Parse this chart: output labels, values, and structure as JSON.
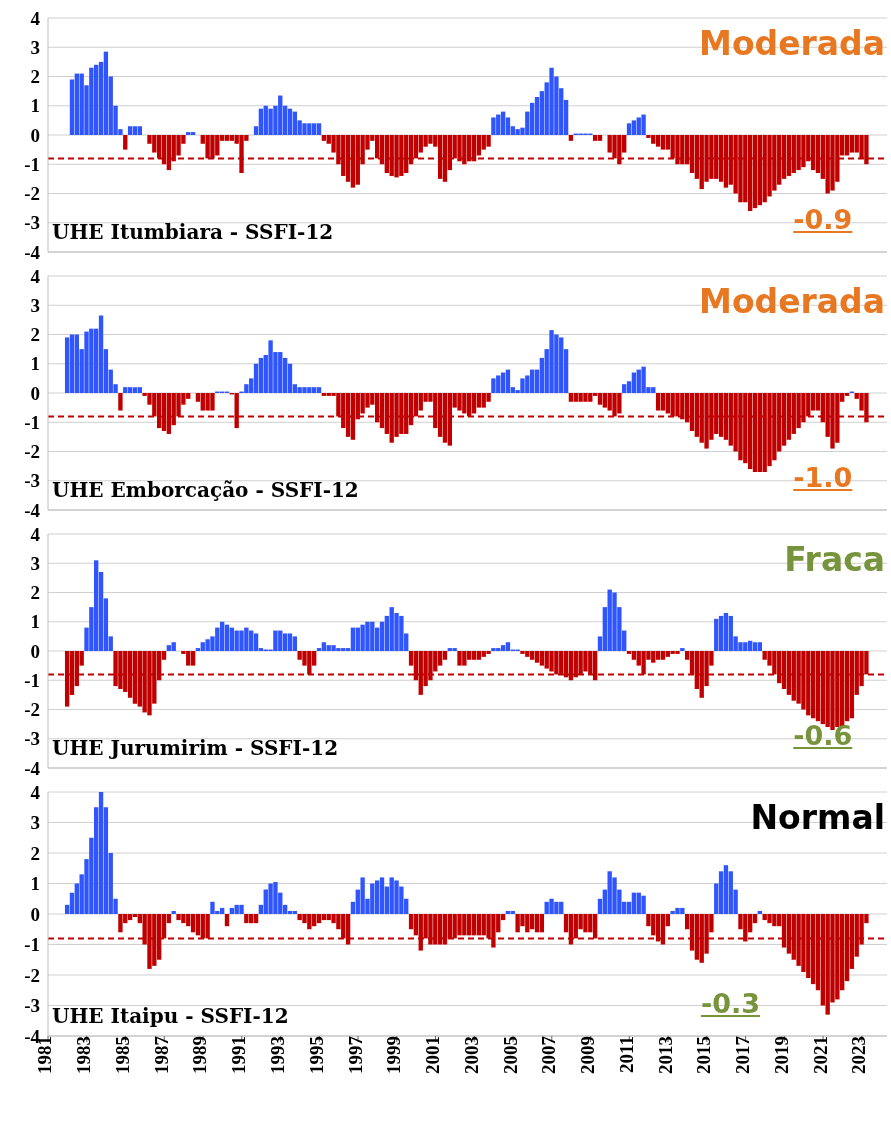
{
  "chart_data": [
    {
      "type": "bar",
      "title": "UHE Itumbiara - SSFI-12",
      "annotations": [
        "Moderada",
        "-0.9"
      ],
      "x": [
        1982,
        1982.25,
        1982.5,
        1982.75,
        1983,
        1983.25,
        1983.5,
        1983.75,
        1984,
        1984.25,
        1984.5,
        1984.75,
        1985,
        1985.25,
        1985.5,
        1985.75,
        1986,
        1986.25,
        1986.5,
        1986.75,
        1987,
        1987.25,
        1987.5,
        1987.75,
        1988,
        1988.25,
        1988.5,
        1988.75,
        1989,
        1989.25,
        1989.5,
        1989.75,
        1990,
        1990.25,
        1990.5,
        1990.75,
        1991,
        1991.25,
        1991.5,
        1991.75,
        1992,
        1992.25,
        1992.5,
        1992.75,
        1993,
        1993.25,
        1993.5,
        1993.75,
        1994,
        1994.25,
        1994.5,
        1994.75,
        1995,
        1995.25,
        1995.5,
        1995.75,
        1996,
        1996.25,
        1996.5,
        1996.75,
        1997,
        1997.25,
        1997.5,
        1997.75,
        1998,
        1998.25,
        1998.5,
        1998.75,
        1999,
        1999.25,
        1999.5,
        1999.75,
        2000,
        2000.25,
        2000.5,
        2000.75,
        2001,
        2001.25,
        2001.5,
        2001.75,
        2002,
        2002.25,
        2002.5,
        2002.75,
        2003,
        2003.25,
        2003.5,
        2003.75,
        2004,
        2004.25,
        2004.5,
        2004.75,
        2005,
        2005.25,
        2005.5,
        2005.75,
        2006,
        2006.25,
        2006.5,
        2006.75,
        2007,
        2007.25,
        2007.5,
        2007.75,
        2008,
        2008.25,
        2008.5,
        2008.75,
        2009,
        2009.25,
        2009.5,
        2009.75,
        2010,
        2010.25,
        2010.5,
        2010.75,
        2011,
        2011.25,
        2011.5,
        2011.75,
        2012,
        2012.25,
        2012.5,
        2012.75,
        2013,
        2013.25,
        2013.5,
        2013.75,
        2014,
        2014.25,
        2014.5,
        2014.75,
        2015,
        2015.25,
        2015.5,
        2015.75,
        2016,
        2016.25,
        2016.5,
        2016.75,
        2017,
        2017.25,
        2017.5,
        2017.75,
        2018,
        2018.25,
        2018.5,
        2018.75,
        2019,
        2019.25,
        2019.5,
        2019.75,
        2020,
        2020.25,
        2020.5,
        2020.75,
        2021,
        2021.25,
        2021.5,
        2021.75,
        2022,
        2022.25,
        2022.5,
        2022.75,
        2023,
        2023.25
      ],
      "values": [
        0,
        1.9,
        2.1,
        2.1,
        1.7,
        2.3,
        2.4,
        2.5,
        2.85,
        2.0,
        1.0,
        0.2,
        -0.5,
        0.3,
        0.3,
        0.3,
        0,
        -0.3,
        -0.6,
        -0.8,
        -1.0,
        -1.2,
        -0.9,
        -0.7,
        -0.3,
        0.1,
        0.1,
        0,
        -0.3,
        -0.8,
        -0.8,
        -0.7,
        -0.2,
        -0.2,
        -0.2,
        -0.3,
        -1.3,
        -0.2,
        0,
        0.3,
        0.9,
        1.0,
        0.9,
        1.0,
        1.35,
        1.0,
        0.9,
        0.8,
        0.5,
        0.4,
        0.4,
        0.4,
        0.4,
        -0.2,
        -0.3,
        -0.6,
        -1.0,
        -1.4,
        -1.6,
        -1.8,
        -1.7,
        -1.0,
        -0.5,
        -0.2,
        -0.8,
        -1.0,
        -1.3,
        -1.4,
        -1.45,
        -1.4,
        -1.3,
        -1.0,
        -0.8,
        -0.6,
        -0.4,
        -0.3,
        -0.4,
        -1.5,
        -1.6,
        -1.2,
        -0.8,
        -0.9,
        -1.0,
        -0.9,
        -0.9,
        -0.7,
        -0.5,
        -0.4,
        0.6,
        0.7,
        0.8,
        0.6,
        0.3,
        0.2,
        0.25,
        0.8,
        1.1,
        1.3,
        1.5,
        1.8,
        2.3,
        2.0,
        1.6,
        1.2,
        -0.2,
        0.05,
        0.05,
        0.05,
        0.05,
        -0.2,
        -0.2,
        0,
        -0.6,
        -0.8,
        -1.0,
        -0.6,
        0.4,
        0.5,
        0.6,
        0.7,
        -0.1,
        -0.3,
        -0.4,
        -0.5,
        -0.5,
        -0.8,
        -1.0,
        -1.0,
        -1.0,
        -1.3,
        -1.5,
        -1.85,
        -1.6,
        -1.5,
        -1.5,
        -1.6,
        -1.8,
        -1.7,
        -2.0,
        -2.3,
        -2.3,
        -2.6,
        -2.5,
        -2.4,
        -2.3,
        -2.1,
        -1.9,
        -1.7,
        -1.5,
        -1.4,
        -1.3,
        -1.2,
        -1.1,
        -0.9,
        -1.2,
        -1.3,
        -1.5,
        -2.0,
        -1.9,
        -1.6,
        -0.7,
        -0.7,
        -0.6,
        -0.6,
        -0.8,
        -1.0
      ],
      "colors": [
        "#2f55ff",
        "#2f55ff",
        "#2f55ff",
        "#2f55ff",
        "#2f55ff",
        "#2f55ff",
        "#2f55ff",
        "#2f55ff",
        "#2f55ff",
        "#2f55ff",
        "#2f55ff",
        "#2f55ff",
        "#c00000",
        "#2f55ff",
        "#2f55ff",
        "#2f55ff",
        "#2f55ff",
        "#c00000",
        "#c00000",
        "#c00000",
        "#c00000",
        "#c00000",
        "#c00000",
        "#c00000",
        "#c00000",
        "#2f55ff",
        "#2f55ff",
        "#2f55ff",
        "#c00000",
        "#c00000",
        "#c00000",
        "#c00000",
        "#c00000",
        "#c00000",
        "#c00000",
        "#c00000",
        "#c00000",
        "#c00000",
        "#2f55ff",
        "#2f55ff",
        "#2f55ff",
        "#2f55ff",
        "#2f55ff",
        "#2f55ff",
        "#2f55ff",
        "#2f55ff",
        "#2f55ff",
        "#2f55ff",
        "#2f55ff",
        "#2f55ff",
        "#2f55ff",
        "#2f55ff",
        "#2f55ff",
        "#c00000",
        "#c00000",
        "#c00000",
        "#c00000",
        "#c00000",
        "#c00000",
        "#c00000",
        "#c00000",
        "#c00000",
        "#c00000",
        "#c00000",
        "#c00000",
        "#c00000",
        "#c00000",
        "#c00000",
        "#c00000",
        "#c00000",
        "#c00000",
        "#c00000",
        "#c00000",
        "#c00000",
        "#c00000",
        "#c00000",
        "#c00000",
        "#c00000",
        "#c00000",
        "#c00000",
        "#c00000",
        "#c00000",
        "#c00000",
        "#c00000",
        "#c00000",
        "#c00000",
        "#c00000",
        "#c00000",
        "#2f55ff",
        "#2f55ff",
        "#2f55ff",
        "#2f55ff",
        "#2f55ff",
        "#2f55ff",
        "#2f55ff",
        "#2f55ff",
        "#2f55ff",
        "#2f55ff",
        "#2f55ff",
        "#2f55ff",
        "#2f55ff",
        "#2f55ff",
        "#2f55ff",
        "#2f55ff",
        "#c00000",
        "#2f55ff",
        "#2f55ff",
        "#2f55ff",
        "#2f55ff",
        "#c00000",
        "#c00000",
        "#2f55ff",
        "#c00000",
        "#c00000",
        "#c00000",
        "#c00000",
        "#2f55ff",
        "#2f55ff",
        "#2f55ff",
        "#2f55ff",
        "#c00000",
        "#c00000",
        "#c00000",
        "#c00000",
        "#c00000",
        "#c00000",
        "#c00000",
        "#c00000",
        "#c00000",
        "#c00000",
        "#c00000",
        "#c00000",
        "#c00000",
        "#c00000",
        "#c00000",
        "#c00000",
        "#c00000",
        "#c00000",
        "#c00000",
        "#c00000",
        "#c00000",
        "#c00000",
        "#c00000",
        "#c00000",
        "#c00000",
        "#c00000",
        "#c00000",
        "#c00000",
        "#c00000",
        "#c00000",
        "#c00000",
        "#c00000",
        "#c00000",
        "#c00000",
        "#c00000",
        "#c00000",
        "#c00000",
        "#c00000",
        "#c00000",
        "#c00000",
        "#c00000",
        "#c00000",
        "#c00000",
        "#c00000",
        "#c00000",
        "#c00000"
      ],
      "xlim": [
        1981,
        2024.3
      ],
      "xticks": [
        1981,
        1983,
        1985,
        1987,
        1989,
        1991,
        1993,
        1995,
        1997,
        1999,
        2001,
        2003,
        2005,
        2007,
        2009,
        2011,
        2013,
        2015,
        2017,
        2019,
        2021,
        2023
      ],
      "ylim": [
        -4,
        4
      ],
      "yticks": [
        -4,
        -3,
        -2,
        -1,
        0,
        1,
        2,
        3,
        4
      ],
      "grid": "y",
      "tick_labels": "y",
      "ref_lines": [
        {
          "axis": "y",
          "value": -0.8,
          "color": "#c00000",
          "line_style": "dashed"
        }
      ]
    },
    {
      "type": "bar",
      "title": "UHE Emborcação - SSFI-12",
      "annotations": [
        "Moderada",
        "-1.0"
      ],
      "x": [
        1982,
        1982.25,
        1982.5,
        1982.75,
        1983,
        1983.25,
        1983.5,
        1983.75,
        1984,
        1984.25,
        1984.5,
        1984.75,
        1985,
        1985.25,
        1985.5,
        1985.75,
        1986,
        1986.25,
        1986.5,
        1986.75,
        1987,
        1987.25,
        1987.5,
        1987.75,
        1988,
        1988.25,
        1988.5,
        1988.75,
        1989,
        1989.25,
        1989.5,
        1989.75,
        1990,
        1990.25,
        1990.5,
        1990.75,
        1991,
        1991.25,
        1991.5,
        1991.75,
        1992,
        1992.25,
        1992.5,
        1992.75,
        1993,
        1993.25,
        1993.5,
        1993.75,
        1994,
        1994.25,
        1994.5,
        1994.75,
        1995,
        1995.25,
        1995.5,
        1995.75,
        1996,
        1996.25,
        1996.5,
        1996.75,
        1997,
        1997.25,
        1997.5,
        1997.75,
        1998,
        1998.25,
        1998.5,
        1998.75,
        1999,
        1999.25,
        1999.5,
        1999.75,
        2000,
        2000.25,
        2000.5,
        2000.75,
        2001,
        2001.25,
        2001.5,
        2001.75,
        2002,
        2002.25,
        2002.5,
        2002.75,
        2003,
        2003.25,
        2003.5,
        2003.75,
        2004,
        2004.25,
        2004.5,
        2004.75,
        2005,
        2005.25,
        2005.5,
        2005.75,
        2006,
        2006.25,
        2006.5,
        2006.75,
        2007,
        2007.25,
        2007.5,
        2007.75,
        2008,
        2008.25,
        2008.5,
        2008.75,
        2009,
        2009.25,
        2009.5,
        2009.75,
        2010,
        2010.25,
        2010.5,
        2010.75,
        2011,
        2011.25,
        2011.5,
        2011.75,
        2012,
        2012.25,
        2012.5,
        2012.75,
        2013,
        2013.25,
        2013.5,
        2013.75,
        2014,
        2014.25,
        2014.5,
        2014.75,
        2015,
        2015.25,
        2015.5,
        2015.75,
        2016,
        2016.25,
        2016.5,
        2016.75,
        2017,
        2017.25,
        2017.5,
        2017.75,
        2018,
        2018.25,
        2018.5,
        2018.75,
        2019,
        2019.25,
        2019.5,
        2019.75,
        2020,
        2020.25,
        2020.5,
        2020.75,
        2021,
        2021.25,
        2021.5,
        2021.75,
        2022,
        2022.25,
        2022.5,
        2022.75,
        2023,
        2023.25
      ],
      "values": [
        1.9,
        2.0,
        2.0,
        1.5,
        2.1,
        2.2,
        2.2,
        2.65,
        1.5,
        0.8,
        0.3,
        -0.6,
        0.2,
        0.2,
        0.2,
        0.2,
        -0.1,
        -0.4,
        -0.8,
        -1.2,
        -1.3,
        -1.4,
        -1.1,
        -0.8,
        -0.4,
        -0.2,
        0,
        -0.3,
        -0.6,
        -0.6,
        -0.6,
        0.05,
        0.05,
        0.05,
        -0.05,
        -1.2,
        0.05,
        0.3,
        0.5,
        1.0,
        1.2,
        1.3,
        1.8,
        1.4,
        1.4,
        1.2,
        1.0,
        0.3,
        0.2,
        0.2,
        0.2,
        0.2,
        0.2,
        -0.1,
        -0.1,
        -0.1,
        -0.8,
        -1.2,
        -1.5,
        -1.6,
        -0.9,
        -0.7,
        -0.5,
        -0.4,
        -1.0,
        -1.2,
        -1.4,
        -1.7,
        -1.5,
        -1.4,
        -1.4,
        -1.1,
        -0.8,
        -0.6,
        -0.3,
        -0.3,
        -1.2,
        -1.5,
        -1.7,
        -1.8,
        -0.5,
        -0.6,
        -0.7,
        -0.8,
        -0.7,
        -0.5,
        -0.5,
        -0.3,
        0.5,
        0.6,
        0.7,
        0.8,
        0.2,
        0.1,
        0.5,
        0.6,
        0.8,
        0.8,
        1.2,
        1.5,
        2.15,
        2.0,
        1.9,
        1.5,
        -0.3,
        -0.3,
        -0.3,
        -0.3,
        -0.3,
        -0.1,
        -0.4,
        -0.5,
        -0.6,
        -0.8,
        -0.7,
        0.3,
        0.4,
        0.7,
        0.8,
        0.9,
        0.2,
        0.2,
        -0.6,
        -0.6,
        -0.7,
        -0.8,
        -0.8,
        -0.9,
        -1.0,
        -1.3,
        -1.5,
        -1.7,
        -1.9,
        -1.6,
        -1.4,
        -1.5,
        -1.6,
        -1.8,
        -2.0,
        -2.3,
        -2.4,
        -2.6,
        -2.7,
        -2.7,
        -2.7,
        -2.5,
        -2.3,
        -2.0,
        -1.8,
        -1.6,
        -1.4,
        -1.2,
        -1.0,
        -0.8,
        -0.6,
        -0.6,
        -1.0,
        -1.5,
        -1.9,
        -1.7,
        -0.3,
        -0.1,
        0.05,
        -0.2,
        -0.6,
        -1.0
      ],
      "colors": [
        "#2f55ff",
        "#2f55ff",
        "#2f55ff",
        "#2f55ff",
        "#2f55ff",
        "#2f55ff",
        "#2f55ff",
        "#2f55ff",
        "#2f55ff",
        "#2f55ff",
        "#2f55ff",
        "#c00000",
        "#2f55ff",
        "#2f55ff",
        "#2f55ff",
        "#2f55ff",
        "#c00000",
        "#c00000",
        "#c00000",
        "#c00000",
        "#c00000",
        "#c00000",
        "#c00000",
        "#c00000",
        "#c00000",
        "#c00000",
        "#2f55ff",
        "#c00000",
        "#c00000",
        "#c00000",
        "#c00000",
        "#2f55ff",
        "#2f55ff",
        "#2f55ff",
        "#c00000",
        "#c00000",
        "#2f55ff",
        "#2f55ff",
        "#2f55ff",
        "#2f55ff",
        "#2f55ff",
        "#2f55ff",
        "#2f55ff",
        "#2f55ff",
        "#2f55ff",
        "#2f55ff",
        "#2f55ff",
        "#2f55ff",
        "#2f55ff",
        "#2f55ff",
        "#2f55ff",
        "#2f55ff",
        "#2f55ff",
        "#c00000",
        "#c00000",
        "#c00000",
        "#c00000",
        "#c00000",
        "#c00000",
        "#c00000",
        "#c00000",
        "#c00000",
        "#c00000",
        "#c00000",
        "#c00000",
        "#c00000",
        "#c00000",
        "#c00000",
        "#c00000",
        "#c00000",
        "#c00000",
        "#c00000",
        "#c00000",
        "#c00000",
        "#c00000",
        "#c00000",
        "#c00000",
        "#c00000",
        "#c00000",
        "#c00000",
        "#c00000",
        "#c00000",
        "#c00000",
        "#c00000",
        "#c00000",
        "#c00000",
        "#c00000",
        "#c00000",
        "#2f55ff",
        "#2f55ff",
        "#2f55ff",
        "#2f55ff",
        "#2f55ff",
        "#2f55ff",
        "#2f55ff",
        "#2f55ff",
        "#2f55ff",
        "#2f55ff",
        "#2f55ff",
        "#2f55ff",
        "#2f55ff",
        "#2f55ff",
        "#2f55ff",
        "#2f55ff",
        "#c00000",
        "#c00000",
        "#c00000",
        "#c00000",
        "#c00000",
        "#c00000",
        "#c00000",
        "#c00000",
        "#c00000",
        "#c00000",
        "#c00000",
        "#2f55ff",
        "#2f55ff",
        "#2f55ff",
        "#2f55ff",
        "#2f55ff",
        "#2f55ff",
        "#2f55ff",
        "#c00000",
        "#c00000",
        "#c00000",
        "#c00000",
        "#c00000",
        "#c00000",
        "#c00000",
        "#c00000",
        "#c00000",
        "#c00000",
        "#c00000",
        "#c00000",
        "#c00000",
        "#c00000",
        "#c00000",
        "#c00000",
        "#c00000",
        "#c00000",
        "#c00000",
        "#c00000",
        "#c00000",
        "#c00000",
        "#c00000",
        "#c00000",
        "#c00000",
        "#c00000",
        "#c00000",
        "#c00000",
        "#c00000",
        "#c00000",
        "#c00000",
        "#c00000",
        "#c00000",
        "#c00000",
        "#c00000",
        "#c00000",
        "#c00000",
        "#c00000",
        "#c00000",
        "#c00000",
        "#2f55ff",
        "#c00000",
        "#c00000",
        "#c00000"
      ],
      "xlim": [
        1981,
        2024.3
      ],
      "xticks": [
        1981,
        1983,
        1985,
        1987,
        1989,
        1991,
        1993,
        1995,
        1997,
        1999,
        2001,
        2003,
        2005,
        2007,
        2009,
        2011,
        2013,
        2015,
        2017,
        2019,
        2021,
        2023
      ],
      "ylim": [
        -4,
        4
      ],
      "yticks": [
        -4,
        -3,
        -2,
        -1,
        0,
        1,
        2,
        3,
        4
      ],
      "grid": "y",
      "tick_labels": "y",
      "ref_lines": [
        {
          "axis": "y",
          "value": -0.8,
          "color": "#c00000",
          "line_style": "dashed"
        }
      ]
    },
    {
      "type": "bar",
      "title": "UHE Jurumirim - SSFI-12",
      "annotations": [
        "Fraca",
        "-0.6"
      ],
      "x": [
        1982,
        1982.25,
        1982.5,
        1982.75,
        1983,
        1983.25,
        1983.5,
        1983.75,
        1984,
        1984.25,
        1984.5,
        1984.75,
        1985,
        1985.25,
        1985.5,
        1985.75,
        1986,
        1986.25,
        1986.5,
        1986.75,
        1987,
        1987.25,
        1987.5,
        1987.75,
        1988,
        1988.25,
        1988.5,
        1988.75,
        1989,
        1989.25,
        1989.5,
        1989.75,
        1990,
        1990.25,
        1990.5,
        1990.75,
        1991,
        1991.25,
        1991.5,
        1991.75,
        1992,
        1992.25,
        1992.5,
        1992.75,
        1993,
        1993.25,
        1993.5,
        1993.75,
        1994,
        1994.25,
        1994.5,
        1994.75,
        1995,
        1995.25,
        1995.5,
        1995.75,
        1996,
        1996.25,
        1996.5,
        1996.75,
        1997,
        1997.25,
        1997.5,
        1997.75,
        1998,
        1998.25,
        1998.5,
        1998.75,
        1999,
        1999.25,
        1999.5,
        1999.75,
        2000,
        2000.25,
        2000.5,
        2000.75,
        2001,
        2001.25,
        2001.5,
        2001.75,
        2002,
        2002.25,
        2002.5,
        2002.75,
        2003,
        2003.25,
        2003.5,
        2003.75,
        2004,
        2004.25,
        2004.5,
        2004.75,
        2005,
        2005.25,
        2005.5,
        2005.75,
        2006,
        2006.25,
        2006.5,
        2006.75,
        2007,
        2007.25,
        2007.5,
        2007.75,
        2008,
        2008.25,
        2008.5,
        2008.75,
        2009,
        2009.25,
        2009.5,
        2009.75,
        2010,
        2010.25,
        2010.5,
        2010.75,
        2011,
        2011.25,
        2011.5,
        2011.75,
        2012,
        2012.25,
        2012.5,
        2012.75,
        2013,
        2013.25,
        2013.5,
        2013.75,
        2014,
        2014.25,
        2014.5,
        2014.75,
        2015,
        2015.25,
        2015.5,
        2015.75,
        2016,
        2016.25,
        2016.5,
        2016.75,
        2017,
        2017.25,
        2017.5,
        2017.75,
        2018,
        2018.25,
        2018.5,
        2018.75,
        2019,
        2019.25,
        2019.5,
        2019.75,
        2020,
        2020.25,
        2020.5,
        2020.75,
        2021,
        2021.25,
        2021.5,
        2021.75,
        2022,
        2022.25,
        2022.5,
        2022.75,
        2023,
        2023.25
      ],
      "values": [
        -1.9,
        -1.5,
        -1.2,
        -0.5,
        0.8,
        1.5,
        3.1,
        2.7,
        1.8,
        0.5,
        -1.2,
        -1.3,
        -1.4,
        -1.6,
        -1.8,
        -1.9,
        -2.1,
        -2.2,
        -1.8,
        -1.0,
        -0.3,
        0.2,
        0.3,
        0,
        -0.1,
        -0.5,
        -0.5,
        0.1,
        0.3,
        0.4,
        0.5,
        0.8,
        1.0,
        0.9,
        0.8,
        0.7,
        0.7,
        0.8,
        0.7,
        0.6,
        0.1,
        0.05,
        0.05,
        0.7,
        0.7,
        0.6,
        0.6,
        0.5,
        -0.3,
        -0.5,
        -0.8,
        -0.5,
        0.1,
        0.3,
        0.2,
        0.2,
        0.1,
        0.1,
        0.1,
        0.8,
        0.8,
        0.9,
        1.0,
        1.0,
        0.8,
        1.0,
        1.2,
        1.5,
        1.3,
        1.2,
        0.6,
        -0.5,
        -1.0,
        -1.5,
        -1.2,
        -1.0,
        -0.7,
        -0.5,
        -0.3,
        0.1,
        0.1,
        -0.5,
        -0.5,
        -0.3,
        -0.3,
        -0.3,
        -0.2,
        -0.1,
        0.1,
        0.1,
        0.2,
        0.3,
        0.05,
        0.05,
        -0.1,
        -0.2,
        -0.3,
        -0.4,
        -0.5,
        -0.6,
        -0.7,
        -0.8,
        -0.8,
        -0.9,
        -1.0,
        -0.9,
        -0.8,
        -0.7,
        -0.8,
        -1.0,
        0.5,
        1.5,
        2.1,
        2.0,
        1.5,
        0.7,
        -0.1,
        -0.3,
        -0.5,
        -0.8,
        -0.3,
        -0.4,
        -0.3,
        -0.3,
        -0.2,
        -0.1,
        -0.1,
        0.1,
        -0.3,
        -0.8,
        -1.3,
        -1.6,
        -1.2,
        -0.5,
        1.1,
        1.2,
        1.3,
        1.2,
        0.5,
        0.3,
        0.3,
        0.35,
        0.3,
        0.3,
        -0.3,
        -0.5,
        -0.8,
        -1.1,
        -1.3,
        -1.5,
        -1.7,
        -1.8,
        -2.0,
        -2.2,
        -2.3,
        -2.4,
        -2.5,
        -2.6,
        -2.7,
        -2.6,
        -2.6,
        -2.4,
        -2.3,
        -1.5,
        -1.2,
        -0.8
      ],
      "colors": [
        "#c00000",
        "#c00000",
        "#c00000",
        "#c00000",
        "#2f55ff",
        "#2f55ff",
        "#2f55ff",
        "#2f55ff",
        "#2f55ff",
        "#2f55ff",
        "#c00000",
        "#c00000",
        "#c00000",
        "#c00000",
        "#c00000",
        "#c00000",
        "#c00000",
        "#c00000",
        "#c00000",
        "#c00000",
        "#c00000",
        "#2f55ff",
        "#2f55ff",
        "#2f55ff",
        "#c00000",
        "#c00000",
        "#c00000",
        "#2f55ff",
        "#2f55ff",
        "#2f55ff",
        "#2f55ff",
        "#2f55ff",
        "#2f55ff",
        "#2f55ff",
        "#2f55ff",
        "#2f55ff",
        "#2f55ff",
        "#2f55ff",
        "#2f55ff",
        "#2f55ff",
        "#2f55ff",
        "#2f55ff",
        "#2f55ff",
        "#2f55ff",
        "#2f55ff",
        "#2f55ff",
        "#2f55ff",
        "#2f55ff",
        "#c00000",
        "#c00000",
        "#c00000",
        "#c00000",
        "#2f55ff",
        "#2f55ff",
        "#2f55ff",
        "#2f55ff",
        "#2f55ff",
        "#2f55ff",
        "#2f55ff",
        "#2f55ff",
        "#2f55ff",
        "#2f55ff",
        "#2f55ff",
        "#2f55ff",
        "#2f55ff",
        "#2f55ff",
        "#2f55ff",
        "#2f55ff",
        "#2f55ff",
        "#2f55ff",
        "#2f55ff",
        "#c00000",
        "#c00000",
        "#c00000",
        "#c00000",
        "#c00000",
        "#c00000",
        "#c00000",
        "#c00000",
        "#2f55ff",
        "#2f55ff",
        "#c00000",
        "#c00000",
        "#c00000",
        "#c00000",
        "#c00000",
        "#c00000",
        "#c00000",
        "#2f55ff",
        "#2f55ff",
        "#2f55ff",
        "#2f55ff",
        "#2f55ff",
        "#2f55ff",
        "#c00000",
        "#c00000",
        "#c00000",
        "#c00000",
        "#c00000",
        "#c00000",
        "#c00000",
        "#c00000",
        "#c00000",
        "#c00000",
        "#c00000",
        "#c00000",
        "#c00000",
        "#c00000",
        "#c00000",
        "#c00000",
        "#2f55ff",
        "#2f55ff",
        "#2f55ff",
        "#2f55ff",
        "#2f55ff",
        "#2f55ff",
        "#c00000",
        "#c00000",
        "#c00000",
        "#c00000",
        "#c00000",
        "#c00000",
        "#c00000",
        "#c00000",
        "#c00000",
        "#c00000",
        "#c00000",
        "#2f55ff",
        "#c00000",
        "#c00000",
        "#c00000",
        "#c00000",
        "#c00000",
        "#c00000",
        "#2f55ff",
        "#2f55ff",
        "#2f55ff",
        "#2f55ff",
        "#2f55ff",
        "#2f55ff",
        "#2f55ff",
        "#2f55ff",
        "#2f55ff",
        "#2f55ff",
        "#c00000",
        "#c00000",
        "#c00000",
        "#c00000",
        "#c00000",
        "#c00000",
        "#c00000",
        "#c00000",
        "#c00000",
        "#c00000",
        "#c00000",
        "#c00000",
        "#c00000",
        "#c00000",
        "#c00000",
        "#c00000",
        "#c00000",
        "#c00000",
        "#c00000",
        "#c00000",
        "#c00000",
        "#c00000"
      ],
      "xlim": [
        1981,
        2024.3
      ],
      "xticks": [
        1981,
        1983,
        1985,
        1987,
        1989,
        1991,
        1993,
        1995,
        1997,
        1999,
        2001,
        2003,
        2005,
        2007,
        2009,
        2011,
        2013,
        2015,
        2017,
        2019,
        2021,
        2023
      ],
      "ylim": [
        -4,
        4
      ],
      "yticks": [
        -4,
        -3,
        -2,
        -1,
        0,
        1,
        2,
        3,
        4
      ],
      "grid": "y",
      "tick_labels": "y",
      "ref_lines": [
        {
          "axis": "y",
          "value": -0.8,
          "color": "#c00000",
          "line_style": "dashed"
        }
      ]
    },
    {
      "type": "bar",
      "title": "UHE Itaipu - SSFI-12",
      "annotations": [
        "Normal",
        "-0.3"
      ],
      "x": [
        1982,
        1982.25,
        1982.5,
        1982.75,
        1983,
        1983.25,
        1983.5,
        1983.75,
        1984,
        1984.25,
        1984.5,
        1984.75,
        1985,
        1985.25,
        1985.5,
        1985.75,
        1986,
        1986.25,
        1986.5,
        1986.75,
        1987,
        1987.25,
        1987.5,
        1987.75,
        1988,
        1988.25,
        1988.5,
        1988.75,
        1989,
        1989.25,
        1989.5,
        1989.75,
        1990,
        1990.25,
        1990.5,
        1990.75,
        1991,
        1991.25,
        1991.5,
        1991.75,
        1992,
        1992.25,
        1992.5,
        1992.75,
        1993,
        1993.25,
        1993.5,
        1993.75,
        1994,
        1994.25,
        1994.5,
        1994.75,
        1995,
        1995.25,
        1995.5,
        1995.75,
        1996,
        1996.25,
        1996.5,
        1996.75,
        1997,
        1997.25,
        1997.5,
        1997.75,
        1998,
        1998.25,
        1998.5,
        1998.75,
        1999,
        1999.25,
        1999.5,
        1999.75,
        2000,
        2000.25,
        2000.5,
        2000.75,
        2001,
        2001.25,
        2001.5,
        2001.75,
        2002,
        2002.25,
        2002.5,
        2002.75,
        2003,
        2003.25,
        2003.5,
        2003.75,
        2004,
        2004.25,
        2004.5,
        2004.75,
        2005,
        2005.25,
        2005.5,
        2005.75,
        2006,
        2006.25,
        2006.5,
        2006.75,
        2007,
        2007.25,
        2007.5,
        2007.75,
        2008,
        2008.25,
        2008.5,
        2008.75,
        2009,
        2009.25,
        2009.5,
        2009.75,
        2010,
        2010.25,
        2010.5,
        2010.75,
        2011,
        2011.25,
        2011.5,
        2011.75,
        2012,
        2012.25,
        2012.5,
        2012.75,
        2013,
        2013.25,
        2013.5,
        2013.75,
        2014,
        2014.25,
        2014.5,
        2014.75,
        2015,
        2015.25,
        2015.5,
        2015.75,
        2016,
        2016.25,
        2016.5,
        2016.75,
        2017,
        2017.25,
        2017.5,
        2017.75,
        2018,
        2018.25,
        2018.5,
        2018.75,
        2019,
        2019.25,
        2019.5,
        2019.75,
        2020,
        2020.25,
        2020.5,
        2020.75,
        2021,
        2021.25,
        2021.5,
        2021.75,
        2022,
        2022.25,
        2022.5,
        2022.75,
        2023,
        2023.25
      ],
      "values": [
        0.3,
        0.7,
        1.0,
        1.3,
        1.8,
        2.5,
        3.5,
        4.0,
        3.5,
        2.0,
        0.5,
        -0.6,
        -0.3,
        -0.2,
        -0.1,
        -0.3,
        -1.0,
        -1.8,
        -1.7,
        -1.5,
        -0.8,
        -0.3,
        0.1,
        -0.2,
        -0.3,
        -0.4,
        -0.6,
        -0.7,
        -0.8,
        -0.8,
        0.4,
        0.1,
        0.2,
        -0.4,
        0.2,
        0.3,
        0.3,
        -0.3,
        -0.3,
        -0.3,
        0.3,
        0.8,
        1.0,
        1.05,
        0.7,
        0.3,
        0.1,
        0.1,
        -0.2,
        -0.3,
        -0.5,
        -0.4,
        -0.3,
        -0.2,
        -0.2,
        -0.3,
        -0.5,
        -0.8,
        -1.0,
        0.4,
        0.8,
        1.2,
        0.5,
        1.0,
        1.1,
        1.2,
        0.9,
        1.2,
        1.1,
        0.9,
        0.5,
        -0.5,
        -0.7,
        -1.2,
        -0.8,
        -1.0,
        -1.0,
        -1.0,
        -1.0,
        -0.8,
        -0.8,
        -0.7,
        -0.7,
        -0.7,
        -0.7,
        -0.7,
        -0.7,
        -0.8,
        -1.1,
        -0.6,
        -0.2,
        0.1,
        0.1,
        -0.6,
        -0.4,
        -0.6,
        -0.5,
        -0.6,
        -0.6,
        0.4,
        0.5,
        0.4,
        0.4,
        -0.6,
        -1.0,
        -0.8,
        -0.5,
        -0.6,
        -0.6,
        -0.8,
        0.5,
        0.8,
        1.4,
        1.2,
        0.8,
        0.4,
        0.4,
        0.7,
        0.7,
        0.6,
        -0.4,
        -0.7,
        -0.9,
        -1.0,
        -0.4,
        0.1,
        0.2,
        0.2,
        -0.5,
        -1.2,
        -1.5,
        -1.6,
        -1.3,
        -0.6,
        1.0,
        1.4,
        1.6,
        1.4,
        0.8,
        -0.5,
        -0.9,
        -0.6,
        -0.3,
        0.1,
        -0.2,
        -0.3,
        -0.4,
        -0.4,
        -1.1,
        -1.3,
        -1.5,
        -1.7,
        -1.9,
        -2.1,
        -2.3,
        -2.5,
        -3.0,
        -3.3,
        -2.9,
        -2.8,
        -2.5,
        -2.2,
        -1.8,
        -1.4,
        -1.0,
        -0.3
      ],
      "colors": [
        "#2f55ff",
        "#2f55ff",
        "#2f55ff",
        "#2f55ff",
        "#2f55ff",
        "#2f55ff",
        "#2f55ff",
        "#2f55ff",
        "#2f55ff",
        "#2f55ff",
        "#2f55ff",
        "#c00000",
        "#c00000",
        "#c00000",
        "#c00000",
        "#c00000",
        "#c00000",
        "#c00000",
        "#c00000",
        "#c00000",
        "#c00000",
        "#c00000",
        "#2f55ff",
        "#c00000",
        "#c00000",
        "#c00000",
        "#c00000",
        "#c00000",
        "#c00000",
        "#c00000",
        "#2f55ff",
        "#2f55ff",
        "#2f55ff",
        "#c00000",
        "#2f55ff",
        "#2f55ff",
        "#2f55ff",
        "#c00000",
        "#c00000",
        "#c00000",
        "#2f55ff",
        "#2f55ff",
        "#2f55ff",
        "#2f55ff",
        "#2f55ff",
        "#2f55ff",
        "#2f55ff",
        "#2f55ff",
        "#c00000",
        "#c00000",
        "#c00000",
        "#c00000",
        "#c00000",
        "#c00000",
        "#c00000",
        "#c00000",
        "#c00000",
        "#c00000",
        "#c00000",
        "#2f55ff",
        "#2f55ff",
        "#2f55ff",
        "#2f55ff",
        "#2f55ff",
        "#2f55ff",
        "#2f55ff",
        "#2f55ff",
        "#2f55ff",
        "#2f55ff",
        "#2f55ff",
        "#2f55ff",
        "#c00000",
        "#c00000",
        "#c00000",
        "#c00000",
        "#c00000",
        "#c00000",
        "#c00000",
        "#c00000",
        "#c00000",
        "#c00000",
        "#c00000",
        "#c00000",
        "#c00000",
        "#c00000",
        "#c00000",
        "#c00000",
        "#c00000",
        "#c00000",
        "#c00000",
        "#c00000",
        "#2f55ff",
        "#2f55ff",
        "#c00000",
        "#c00000",
        "#c00000",
        "#c00000",
        "#c00000",
        "#c00000",
        "#2f55ff",
        "#2f55ff",
        "#2f55ff",
        "#2f55ff",
        "#c00000",
        "#c00000",
        "#c00000",
        "#c00000",
        "#c00000",
        "#c00000",
        "#c00000",
        "#2f55ff",
        "#2f55ff",
        "#2f55ff",
        "#2f55ff",
        "#2f55ff",
        "#2f55ff",
        "#2f55ff",
        "#2f55ff",
        "#2f55ff",
        "#2f55ff",
        "#c00000",
        "#c00000",
        "#c00000",
        "#c00000",
        "#c00000",
        "#2f55ff",
        "#2f55ff",
        "#2f55ff",
        "#c00000",
        "#c00000",
        "#c00000",
        "#c00000",
        "#c00000",
        "#c00000",
        "#2f55ff",
        "#2f55ff",
        "#2f55ff",
        "#2f55ff",
        "#2f55ff",
        "#c00000",
        "#c00000",
        "#c00000",
        "#c00000",
        "#2f55ff",
        "#c00000",
        "#c00000",
        "#c00000",
        "#c00000",
        "#c00000",
        "#c00000",
        "#c00000",
        "#c00000",
        "#c00000",
        "#c00000",
        "#c00000",
        "#c00000",
        "#c00000",
        "#c00000",
        "#c00000",
        "#c00000",
        "#c00000",
        "#c00000",
        "#c00000",
        "#c00000",
        "#c00000",
        "#c00000"
      ],
      "xlim": [
        1981,
        2024.3
      ],
      "xticks": [
        1981,
        1983,
        1985,
        1987,
        1989,
        1991,
        1993,
        1995,
        1997,
        1999,
        2001,
        2003,
        2005,
        2007,
        2009,
        2011,
        2013,
        2015,
        2017,
        2019,
        2021,
        2023
      ],
      "ylim": [
        -4,
        4
      ],
      "yticks": [
        -4,
        -3,
        -2,
        -1,
        0,
        1,
        2,
        3,
        4
      ],
      "grid": "y",
      "ref_lines": [
        {
          "axis": "y",
          "value": -0.8,
          "color": "#c00000",
          "line_style": "dashed"
        }
      ]
    }
  ]
}
